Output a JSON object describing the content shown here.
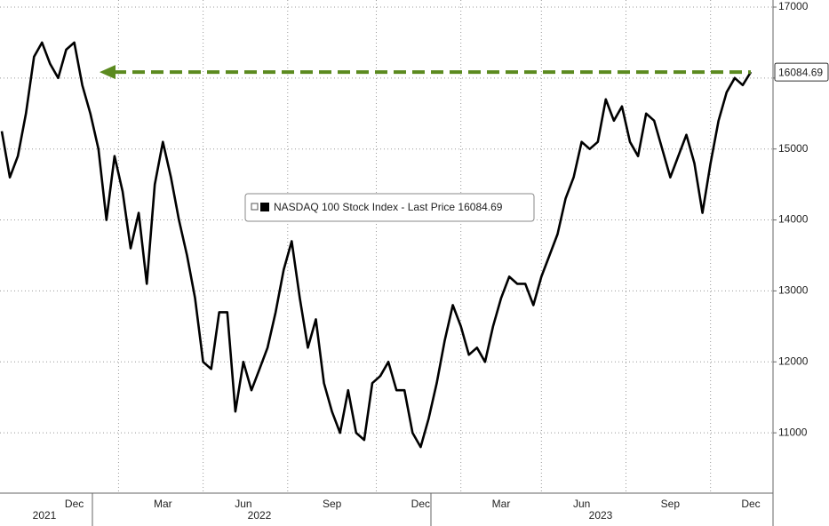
{
  "chart_data": {
    "type": "line",
    "categories": [
      null,
      null,
      null,
      null,
      null,
      null,
      null,
      null,
      null,
      "Dec",
      null,
      null,
      null,
      null,
      null,
      null,
      null,
      null,
      null,
      null,
      "Mar",
      null,
      null,
      null,
      null,
      null,
      null,
      null,
      null,
      null,
      "Jun",
      null,
      null,
      null,
      null,
      null,
      null,
      null,
      null,
      null,
      null,
      "Sep",
      null,
      null,
      null,
      null,
      null,
      null,
      null,
      null,
      null,
      null,
      "Dec",
      null,
      null,
      null,
      null,
      null,
      null,
      null,
      null,
      null,
      "Mar",
      null,
      null,
      null,
      null,
      null,
      null,
      null,
      null,
      null,
      "Jun",
      null,
      null,
      null,
      null,
      null,
      null,
      null,
      null,
      null,
      null,
      "Sep",
      null,
      null,
      null,
      null,
      null,
      null,
      null,
      null,
      null,
      "Dec"
    ],
    "year_labels": [
      "2021",
      "2022",
      "2023"
    ],
    "series": [
      {
        "name": "NASDAQ 100 Stock Index - Last Price 16084.69",
        "color": "#000000",
        "values": [
          15250,
          14600,
          14900,
          15500,
          16300,
          16500,
          16200,
          16000,
          16400,
          16500,
          15900,
          15500,
          15000,
          14000,
          14900,
          14400,
          13600,
          14100,
          13100,
          14500,
          15100,
          14600,
          14000,
          13500,
          12900,
          12000,
          11900,
          12700,
          12700,
          11300,
          12000,
          11600,
          11900,
          12200,
          12700,
          13300,
          13700,
          12900,
          12200,
          12600,
          11700,
          11300,
          11000,
          11600,
          11000,
          10900,
          11700,
          11800,
          12000,
          11600,
          11600,
          11000,
          10800,
          11200,
          11700,
          12300,
          12800,
          12500,
          12100,
          12200,
          12000,
          12500,
          12900,
          13200,
          13100,
          13100,
          12800,
          13200,
          13500,
          13800,
          14300,
          14600,
          15100,
          15000,
          15100,
          15700,
          15400,
          15600,
          15100,
          14900,
          15500,
          15400,
          15000,
          14600,
          14900,
          15200,
          14800,
          14100,
          14800,
          15400,
          15800,
          16000,
          15900,
          16084.69
        ]
      }
    ],
    "ylim": [
      10150,
      17100
    ],
    "yticks": [
      11000,
      12000,
      13000,
      14000,
      15000,
      16000,
      17000
    ],
    "grid": true,
    "annotation_color": "#5b8a1f"
  }
}
